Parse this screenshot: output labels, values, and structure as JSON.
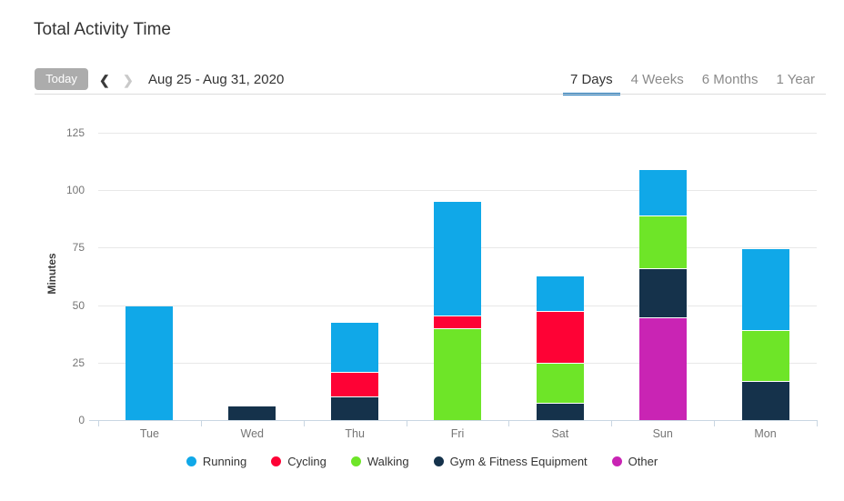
{
  "header": {
    "title": "Total Activity Time"
  },
  "toolbar": {
    "today_label": "Today",
    "date_range": "Aug 25 - Aug 31, 2020",
    "icons": {
      "chevron_left": "❮",
      "chevron_right": "❯"
    },
    "today_bg": "#acacac"
  },
  "tabs": {
    "active_color": "#1673b8",
    "items": [
      {
        "label": "7 Days",
        "active": true
      },
      {
        "label": "4 Weeks",
        "active": false
      },
      {
        "label": "6 Months",
        "active": false
      },
      {
        "label": "1 Year",
        "active": false
      }
    ]
  },
  "chart_data": {
    "type": "bar",
    "stacked": true,
    "title": "Total Activity Time",
    "categories": [
      "Tue",
      "Wed",
      "Thu",
      "Fri",
      "Sat",
      "Sun",
      "Mon"
    ],
    "series": [
      {
        "name": "Running",
        "color": "#10a8e8",
        "values": [
          49.5,
          0,
          22,
          50,
          15.5,
          20,
          35.5
        ]
      },
      {
        "name": "Cycling",
        "color": "#fe0235",
        "values": [
          0,
          0,
          10.5,
          5.5,
          22.5,
          0,
          0
        ]
      },
      {
        "name": "Walking",
        "color": "#6ee528",
        "values": [
          0,
          0,
          0,
          39.5,
          17.5,
          23,
          22.5
        ]
      },
      {
        "name": "Gym & Fitness Equipment",
        "color": "#15324b",
        "values": [
          0,
          6,
          10,
          0,
          7,
          21.5,
          16.5
        ]
      },
      {
        "name": "Other",
        "color": "#c924b4",
        "values": [
          0,
          0,
          0,
          0,
          0,
          44.5,
          0
        ]
      }
    ],
    "stack_order_bottom_to_top": [
      "Other",
      "Gym & Fitness Equipment",
      "Walking",
      "Cycling",
      "Running"
    ],
    "xlabel": "",
    "ylabel": "Minutes",
    "yticks": [
      0,
      25,
      50,
      75,
      100,
      125
    ],
    "ylim": [
      0,
      125
    ],
    "grid": true,
    "legend_position": "bottom",
    "grid_color": "#e8e8e8",
    "axis_color": "#c9d6e2"
  }
}
